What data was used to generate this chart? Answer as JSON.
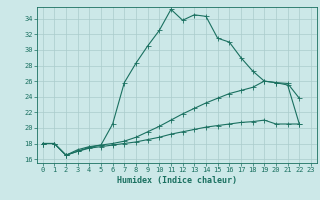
{
  "xlabel": "Humidex (Indice chaleur)",
  "xlim": [
    -0.5,
    23.5
  ],
  "ylim": [
    15.5,
    35.5
  ],
  "xticks": [
    0,
    1,
    2,
    3,
    4,
    5,
    6,
    7,
    8,
    9,
    10,
    11,
    12,
    13,
    14,
    15,
    16,
    17,
    18,
    19,
    20,
    21,
    22,
    23
  ],
  "yticks": [
    16,
    18,
    20,
    22,
    24,
    26,
    28,
    30,
    32,
    34
  ],
  "bg_color": "#cce8e8",
  "grid_color": "#aacccc",
  "line_color": "#1a7060",
  "line1_x": [
    0,
    1,
    2,
    3,
    4,
    5,
    6,
    7,
    8,
    9,
    10,
    11,
    12,
    13,
    14,
    15,
    16,
    17,
    18,
    19,
    20,
    21,
    22
  ],
  "line1_y": [
    18.0,
    18.0,
    16.5,
    17.0,
    17.5,
    17.8,
    20.5,
    25.8,
    28.3,
    30.5,
    32.5,
    35.2,
    33.8,
    34.5,
    34.3,
    31.5,
    31.0,
    29.0,
    27.3,
    26.0,
    25.8,
    25.7,
    23.8
  ],
  "line2_x": [
    0,
    1,
    2,
    3,
    4,
    5,
    6,
    7,
    8,
    9,
    10,
    11,
    12,
    13,
    14,
    15,
    16,
    17,
    18,
    19,
    20,
    21,
    22
  ],
  "line2_y": [
    18.0,
    18.0,
    16.5,
    17.2,
    17.6,
    17.8,
    18.0,
    18.3,
    18.8,
    19.5,
    20.2,
    21.0,
    21.8,
    22.5,
    23.2,
    23.8,
    24.4,
    24.8,
    25.2,
    26.0,
    25.8,
    25.5,
    20.5
  ],
  "line3_x": [
    0,
    1,
    2,
    3,
    4,
    5,
    6,
    7,
    8,
    9,
    10,
    11,
    12,
    13,
    14,
    15,
    16,
    17,
    18,
    19,
    20,
    21,
    22
  ],
  "line3_y": [
    18.0,
    18.0,
    16.5,
    17.0,
    17.4,
    17.6,
    17.8,
    18.0,
    18.2,
    18.5,
    18.8,
    19.2,
    19.5,
    19.8,
    20.1,
    20.3,
    20.5,
    20.7,
    20.8,
    21.0,
    20.5,
    20.5,
    20.5
  ]
}
